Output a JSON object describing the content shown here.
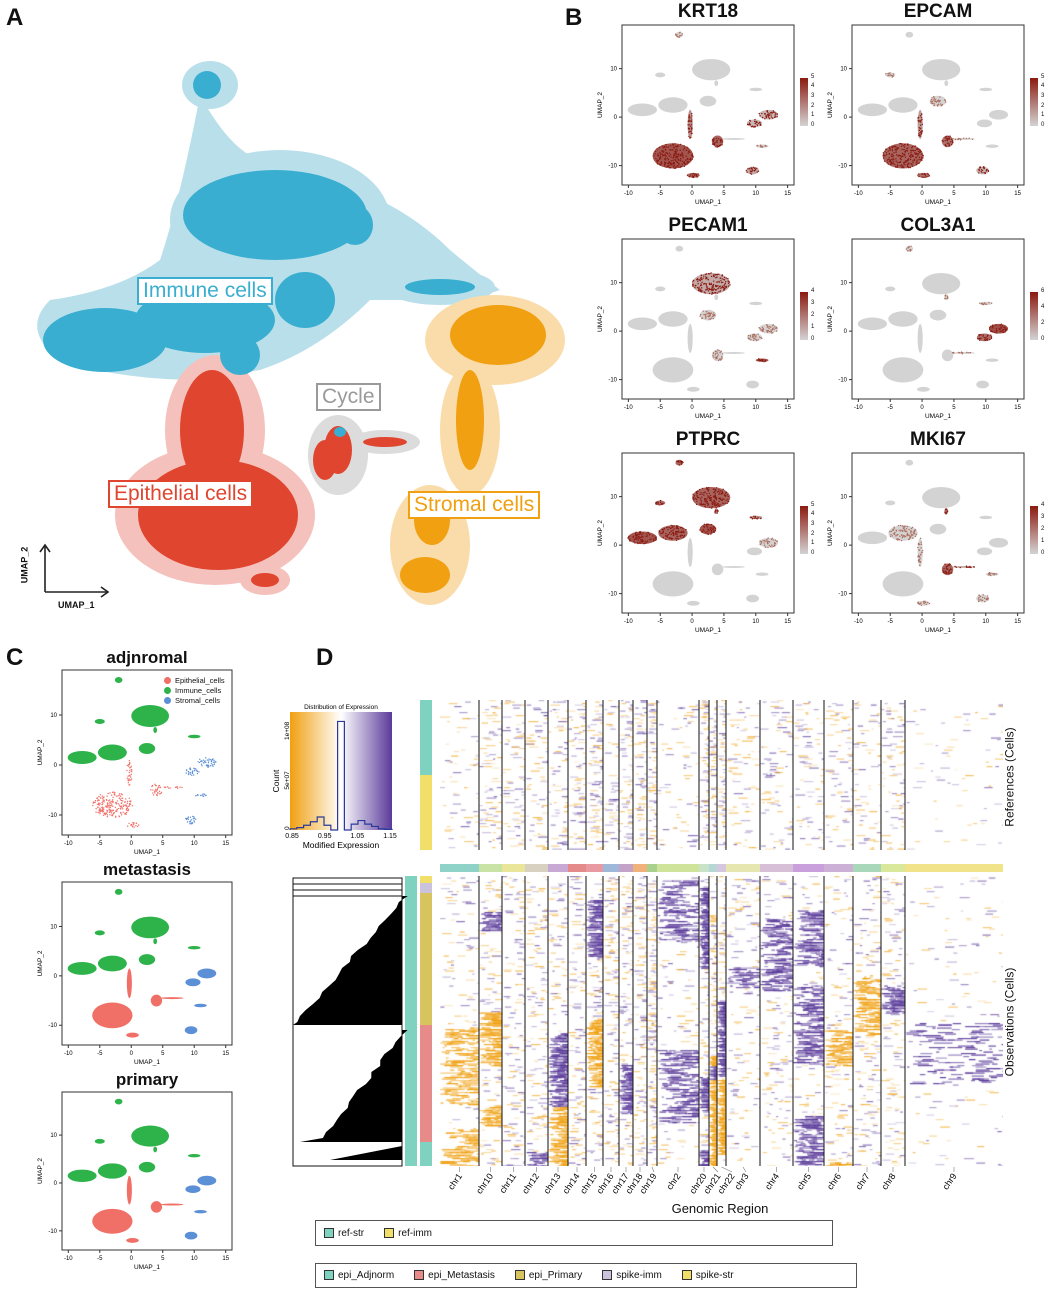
{
  "panels": {
    "a": "A",
    "b": "B",
    "c": "C",
    "d": "D"
  },
  "panel_a": {
    "labels": {
      "immune": "Immune cells",
      "cycle": "Cycle",
      "epithelial": "Epithelial cells",
      "stromal": "Stromal cells"
    },
    "xlabel": "UMAP_1",
    "ylabel": "UMAP_2",
    "colors": {
      "immune": "#3aaed0",
      "cycle": "#9a9a9a",
      "epithelial": "#e0452f",
      "stromal": "#f0a010"
    }
  },
  "chart_data": [
    {
      "id": "feature-plots",
      "type": "scatter",
      "xlabel": "UMAP_1",
      "ylabel": "UMAP_2",
      "xlim": [
        -11,
        16
      ],
      "ylim": [
        -14,
        19
      ],
      "xticks": [
        -10,
        -5,
        0,
        5,
        10,
        15
      ],
      "yticks": [
        -10,
        0,
        10
      ],
      "color_low": "#d3d3d3",
      "color_high": "#8b1a10",
      "genes": [
        {
          "name": "KRT18",
          "colorbar_ticks": [
            "0",
            "1",
            "2",
            "3",
            "4",
            "5"
          ]
        },
        {
          "name": "EPCAM",
          "colorbar_ticks": [
            "0",
            "1",
            "2",
            "3",
            "4",
            "5"
          ]
        },
        {
          "name": "PECAM1",
          "colorbar_ticks": [
            "0",
            "1",
            "2",
            "3",
            "4"
          ]
        },
        {
          "name": "COL3A1",
          "colorbar_ticks": [
            "0",
            "2",
            "4",
            "6"
          ]
        },
        {
          "name": "PTPRC",
          "colorbar_ticks": [
            "0",
            "1",
            "2",
            "3",
            "4",
            "5"
          ]
        },
        {
          "name": "MKI67",
          "colorbar_ticks": [
            "0",
            "1",
            "2",
            "3",
            "4"
          ]
        }
      ],
      "clusters": [
        {
          "x": -2,
          "y": 17,
          "rx": 0.6,
          "ry": 0.6,
          "type": "immune",
          "expr": {
            "PTPRC": 0.8
          }
        },
        {
          "x": 3,
          "y": 9.8,
          "rx": 3,
          "ry": 2.2,
          "type": "immune",
          "expr": {
            "PECAM1": 0.3,
            "PTPRC": 0.8
          }
        },
        {
          "x": -7.8,
          "y": 1.5,
          "rx": 2.3,
          "ry": 1.3,
          "type": "immune",
          "expr": {
            "PTPRC": 0.9
          }
        },
        {
          "x": -3,
          "y": 2.5,
          "rx": 2.3,
          "ry": 1.6,
          "type": "immune",
          "expr": {
            "PTPRC": 0.8
          }
        },
        {
          "x": 2.5,
          "y": 3.3,
          "rx": 1.3,
          "ry": 1.1,
          "type": "immune",
          "expr": {
            "PTPRC": 0.9
          }
        },
        {
          "x": -5,
          "y": 8.7,
          "rx": 0.8,
          "ry": 0.5,
          "type": "immune",
          "expr": {
            "PTPRC": 0.7
          }
        },
        {
          "x": -0.3,
          "y": -1.5,
          "rx": 0.4,
          "ry": 3,
          "type": "epithelial",
          "expr": {
            "KRT18": 0.5,
            "EPCAM": 0.4
          }
        },
        {
          "x": -3,
          "y": -8,
          "rx": 3.2,
          "ry": 2.6,
          "type": "epithelial",
          "expr": {
            "KRT18": 0.9,
            "EPCAM": 0.8
          }
        },
        {
          "x": 0.2,
          "y": -12,
          "rx": 1,
          "ry": 0.5,
          "type": "epithelial",
          "expr": {
            "KRT18": 0.8,
            "EPCAM": 0.7
          }
        },
        {
          "x": 4,
          "y": -5,
          "rx": 0.9,
          "ry": 1.2,
          "type": "cycle",
          "expr": {
            "KRT18": 0.8,
            "EPCAM": 0.7,
            "MKI67": 0.8
          }
        },
        {
          "x": 12,
          "y": 0.5,
          "rx": 1.5,
          "ry": 1,
          "type": "stromal",
          "expr": {
            "COL3A1": 0.95,
            "KRT18": 0.2
          }
        },
        {
          "x": 9.8,
          "y": -1.3,
          "rx": 1.2,
          "ry": 0.8,
          "type": "stromal",
          "expr": {
            "COL3A1": 0.7,
            "KRT18": 0.2
          }
        },
        {
          "x": 11,
          "y": -6,
          "rx": 1,
          "ry": 0.35,
          "type": "stromal",
          "expr": {
            "PECAM1": 0.9
          }
        },
        {
          "x": 9.5,
          "y": -11,
          "rx": 1,
          "ry": 0.8,
          "type": "stromal",
          "expr": {
            "KRT18": 0.3,
            "EPCAM": 0.2
          }
        },
        {
          "x": 10,
          "y": 5.7,
          "rx": 1,
          "ry": 0.35,
          "type": "immune",
          "expr": {
            "PTPRC": 0.5
          }
        },
        {
          "x": 3.8,
          "y": 7,
          "rx": 0.3,
          "ry": 0.6,
          "type": "immune",
          "expr": {
            "MKI67": 0.8,
            "PTPRC": 0.5
          }
        },
        {
          "x": 6.5,
          "y": -4.5,
          "rx": 1.8,
          "ry": 0.2,
          "type": "cycle",
          "expr": {
            "MKI67": 0.3
          }
        }
      ]
    },
    {
      "id": "condition-plots",
      "type": "scatter",
      "xlabel": "UMAP_1",
      "ylabel": "UMAP_2",
      "xlim": [
        -11,
        16
      ],
      "ylim": [
        -14,
        19
      ],
      "xticks": [
        -10,
        -5,
        0,
        5,
        10,
        15
      ],
      "yticks": [
        -10,
        0,
        10
      ],
      "conditions": [
        {
          "name": "adjnromal"
        },
        {
          "name": "metastasis"
        },
        {
          "name": "primary"
        }
      ],
      "legend": [
        {
          "label": "Epithelial_cells",
          "color": "#f07068"
        },
        {
          "label": "Immune_cells",
          "color": "#2db34a"
        },
        {
          "label": "Stromal_cells",
          "color": "#5b8fd6"
        }
      ],
      "legend_position": "top-right"
    },
    {
      "id": "infercnv-heatmap",
      "type": "heatmap",
      "xlabel": "Genomic Region",
      "row_label_references": "References (Cells)",
      "row_label_observations": "Observations (Cells)",
      "chromosomes": [
        "chr1",
        "chr10",
        "chr11",
        "chr12",
        "chr13",
        "chr14",
        "chr15",
        "chr16",
        "chr17",
        "chr18",
        "chr19",
        "chr2",
        "chr20",
        "chr21",
        "chr22",
        "chr3",
        "chr4",
        "chr5",
        "chr6",
        "chr7",
        "chr8",
        "chr9"
      ],
      "color_low": "#f0a010",
      "color_mid": "#ffffff",
      "color_high": "#5a3a9a",
      "histogram": {
        "title": "Distribution of Expression",
        "xlabel": "Modified Expression",
        "ylabel": "Count",
        "xticks": [
          "0.85",
          "0.95",
          "1.05",
          "1.15"
        ],
        "yticks": [
          "0",
          "5e+07",
          "1e+08"
        ]
      },
      "reference_legend": [
        {
          "label": "ref-str",
          "color": "#7fd1c0"
        },
        {
          "label": "ref-imm",
          "color": "#f2df6a"
        }
      ],
      "observation_legend": [
        {
          "label": "epi_Adjnorm",
          "color": "#7fd1c0"
        },
        {
          "label": "epi_Metastasis",
          "color": "#e78a8a"
        },
        {
          "label": "epi_Primary",
          "color": "#d8c45e"
        },
        {
          "label": "spike-imm",
          "color": "#cbc3dc"
        },
        {
          "label": "spike-str",
          "color": "#f2df6a"
        }
      ]
    }
  ]
}
